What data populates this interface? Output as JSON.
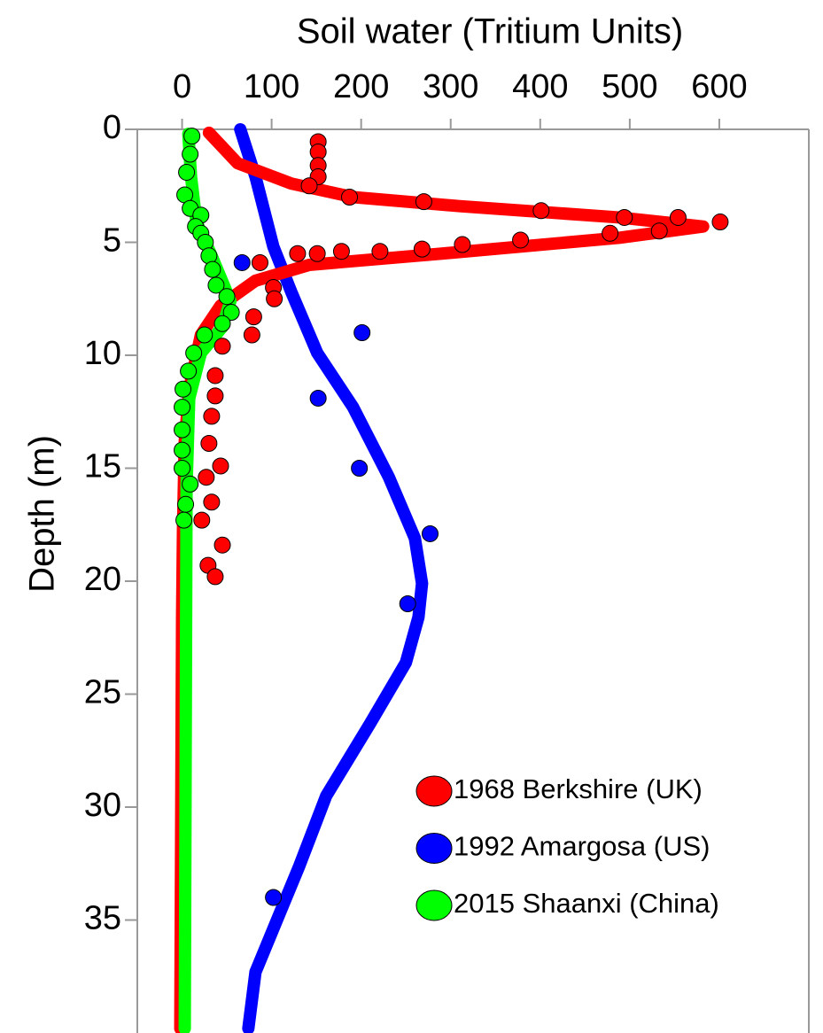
{
  "chart_data": {
    "type": "scatter",
    "title": "Soil water (Tritium Units)",
    "y_label": "Depth (m)",
    "x_axis_position": "top",
    "y_inverted": true,
    "xlim": [
      -50,
      700
    ],
    "xticks": [
      0,
      100,
      200,
      300,
      400,
      500,
      600
    ],
    "ylim": [
      0,
      40
    ],
    "yticks": [
      0,
      5,
      10,
      15,
      20,
      25,
      30,
      35
    ],
    "legend": "lower right",
    "series": [
      {
        "name": "1968 Berkshire (UK)",
        "color": "#ff0000",
        "x": [
          152,
          152,
          152,
          152,
          142,
          187,
          270,
          401,
          494,
          554,
          601,
          478,
          533,
          378,
          313,
          268,
          221,
          178,
          151,
          129,
          87,
          102,
          103,
          80,
          78,
          45,
          37,
          37,
          33,
          30,
          43,
          27,
          33,
          22,
          45,
          29,
          37
        ],
        "values": [
          0.55,
          1.0,
          1.6,
          2.1,
          2.5,
          3.0,
          3.2,
          3.6,
          3.9,
          3.9,
          4.1,
          4.6,
          4.5,
          4.9,
          5.1,
          5.3,
          5.4,
          5.4,
          5.5,
          5.5,
          5.9,
          7.0,
          7.5,
          8.3,
          9.1,
          9.6,
          10.9,
          11.8,
          12.7,
          13.9,
          14.9,
          15.4,
          16.5,
          17.3,
          18.4,
          19.3,
          19.8
        ],
        "curve_x": [
          30,
          62,
          122,
          191,
          310,
          488,
          582,
          488,
          290,
          142,
          82,
          43,
          21,
          8,
          3,
          1,
          0,
          -2
        ],
        "curve_values": [
          0.15,
          1.5,
          2.4,
          3.0,
          3.4,
          3.9,
          4.3,
          4.8,
          5.5,
          6.0,
          6.7,
          7.8,
          9.1,
          11.5,
          13.8,
          17.7,
          21.6,
          39.8
        ]
      },
      {
        "name": "1992 Amargosa (US)",
        "color": "#0000ff",
        "x": [
          67,
          201,
          152,
          198,
          277,
          252,
          102
        ],
        "values": [
          5.9,
          9.0,
          11.9,
          15.0,
          17.9,
          21.0,
          34.0
        ],
        "curve_x": [
          65,
          82,
          102,
          122,
          151,
          191,
          231,
          260,
          268,
          264,
          250,
          210,
          161,
          131,
          107,
          82,
          74
        ],
        "curve_values": [
          0,
          2.1,
          5.2,
          7.2,
          9.9,
          12.3,
          15.4,
          18.1,
          20.1,
          21.6,
          23.6,
          26.3,
          29.5,
          32.6,
          34.9,
          37.3,
          39.8
        ]
      },
      {
        "name": "2015 Shaanxi (China)",
        "color": "#00ff00",
        "x": [
          11,
          9,
          5,
          3,
          9,
          21,
          15,
          21,
          26,
          30,
          34,
          38,
          50,
          55,
          45,
          25,
          13,
          7,
          1,
          0,
          0,
          0,
          0,
          9,
          4,
          2
        ],
        "values": [
          0.3,
          1.1,
          1.9,
          2.9,
          3.5,
          3.8,
          4.3,
          4.6,
          5.0,
          5.6,
          6.2,
          6.9,
          7.4,
          8.1,
          8.6,
          9.1,
          9.9,
          10.7,
          11.5,
          12.3,
          13.3,
          14.2,
          15.0,
          15.7,
          16.6,
          17.3
        ],
        "curve_x": [
          7,
          10,
          16,
          33,
          54,
          45,
          21,
          8,
          5,
          3
        ],
        "curve_values": [
          0.2,
          2.1,
          4.1,
          5.6,
          7.6,
          8.75,
          9.9,
          11.9,
          15.8,
          39.8
        ]
      }
    ]
  }
}
